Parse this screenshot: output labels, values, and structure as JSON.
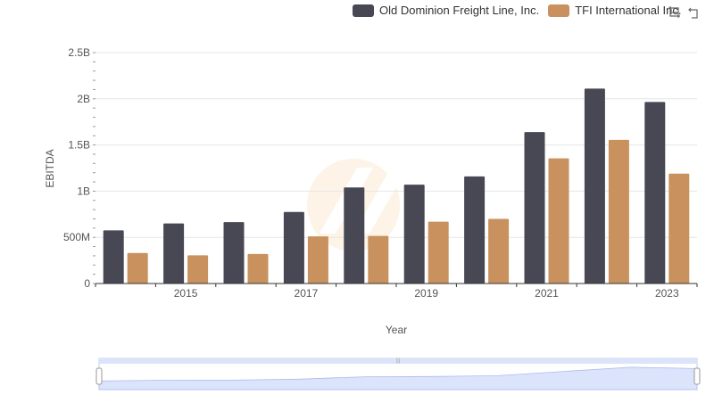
{
  "colors": {
    "odfl": "#484855",
    "tfi": "#c8915d",
    "grid": "#e6e6e6",
    "axis": "#333333",
    "zoom_fill": "#dbe4fb",
    "zoom_border": "#c5cde8"
  },
  "toolbox": {
    "icons": [
      "zoom-icon",
      "restore-icon"
    ]
  },
  "chart_data": {
    "type": "bar",
    "title": "",
    "xlabel": "Year",
    "ylabel": "EBITDA",
    "categories": [
      "2014",
      "2015",
      "2016",
      "2017",
      "2018",
      "2019",
      "2020",
      "2021",
      "2022",
      "2023"
    ],
    "x_tick_labels": [
      "2015",
      "2017",
      "2019",
      "2021",
      "2023"
    ],
    "y_tick_labels": [
      "0",
      "500M",
      "1B",
      "1.5B",
      "2B",
      "2.5B"
    ],
    "ylim": [
      0,
      2500000000
    ],
    "grid": true,
    "legend_position": "top-right",
    "series": [
      {
        "name": "Old Dominion Freight Line, Inc.",
        "color": "#484855",
        "values": [
          575000000,
          650000000,
          665000000,
          775000000,
          1040000000,
          1070000000,
          1160000000,
          1640000000,
          2110000000,
          1965000000
        ]
      },
      {
        "name": "TFI International Inc.",
        "color": "#c8915d",
        "values": [
          330000000,
          305000000,
          320000000,
          510000000,
          515000000,
          670000000,
          700000000,
          1355000000,
          1555000000,
          1190000000
        ]
      }
    ]
  }
}
